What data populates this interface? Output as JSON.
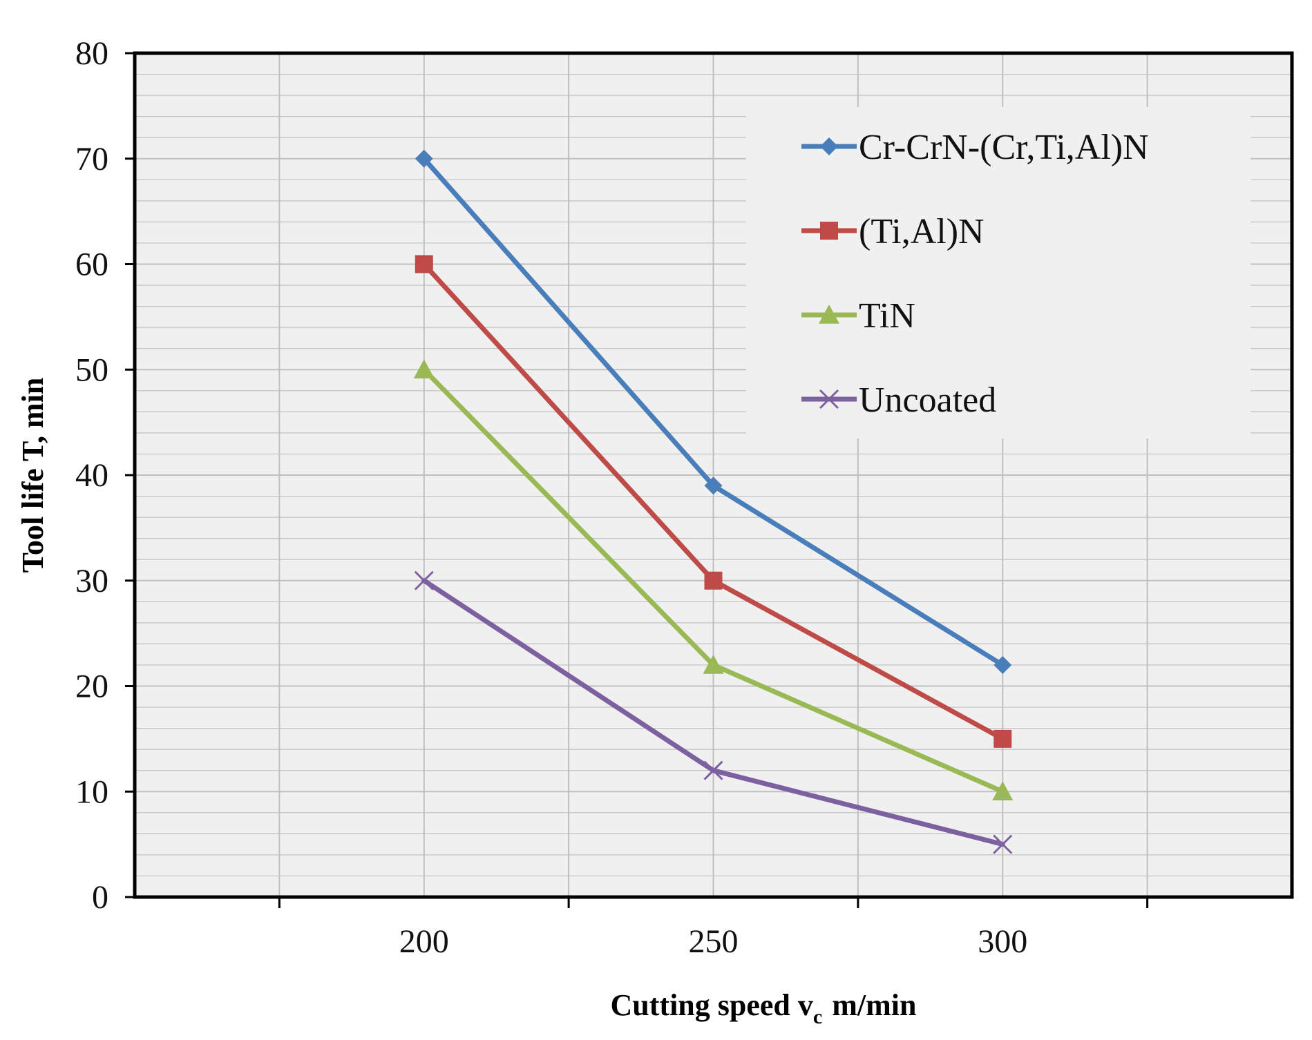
{
  "chart_data": {
    "type": "line",
    "title": "",
    "xlabel": "Cutting speed v",
    "xlabel_sub": "c",
    "xlabel_unit": "m/min",
    "ylabel": "Tool life T, min",
    "categories": [
      "200",
      "250",
      "300"
    ],
    "x_range": [
      150,
      350
    ],
    "ylim": [
      0,
      80
    ],
    "y_ticks": [
      0,
      10,
      20,
      30,
      40,
      50,
      60,
      70,
      80
    ],
    "grid": true,
    "legend_position": "top-right",
    "series": [
      {
        "name": "Cr-CrN-(Cr,Ti,Al)N",
        "values": [
          70,
          39,
          22
        ],
        "color": "#4a7ebb",
        "marker": "diamond"
      },
      {
        "name": "(Ti,Al)N",
        "values": [
          60,
          30,
          15
        ],
        "color": "#be4b48",
        "marker": "square"
      },
      {
        "name": "TiN",
        "values": [
          50,
          22,
          10
        ],
        "color": "#98b954",
        "marker": "triangle"
      },
      {
        "name": "Uncoated",
        "values": [
          30,
          12,
          5
        ],
        "color": "#7d60a0",
        "marker": "x"
      }
    ],
    "colors": {
      "plot_background": "#f0f0f0",
      "legend_background": "#f0f0f0",
      "gridline": "#bfbfbf",
      "frame": "#000000"
    }
  }
}
